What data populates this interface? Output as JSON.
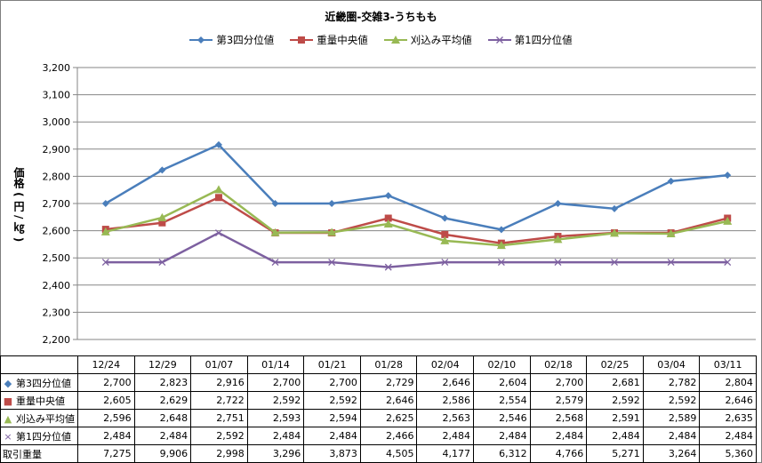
{
  "colors": {
    "q3": "#4a7ebb",
    "median": "#be4b48",
    "avg": "#98b954",
    "q1": "#7d60a0",
    "grid": "#868686"
  },
  "chart_data": {
    "type": "line",
    "title": "近畿圏-交雑3-うちもも",
    "ylabel": "価格 ( 円 / ㎏ )",
    "ylim": [
      2200,
      3200
    ],
    "yticks": [
      2200,
      2300,
      2400,
      2500,
      2600,
      2700,
      2800,
      2900,
      3000,
      3100,
      3200
    ],
    "ytick_labels": [
      "2,200",
      "2,300",
      "2,400",
      "2,500",
      "2,600",
      "2,700",
      "2,800",
      "2,900",
      "3,000",
      "3,100",
      "3,200"
    ],
    "grid": true,
    "legend": "top",
    "categories": [
      "12/24",
      "12/29",
      "01/07",
      "01/14",
      "01/21",
      "01/28",
      "02/04",
      "02/10",
      "02/18",
      "02/25",
      "03/04",
      "03/11"
    ],
    "series": [
      {
        "name": "第3四分位値",
        "key": "q3",
        "marker": "diamond",
        "values": [
          2700,
          2823,
          2916,
          2700,
          2700,
          2729,
          2646,
          2604,
          2700,
          2681,
          2782,
          2804
        ],
        "labels": [
          "2,700",
          "2,823",
          "2,916",
          "2,700",
          "2,700",
          "2,729",
          "2,646",
          "2,604",
          "2,700",
          "2,681",
          "2,782",
          "2,804"
        ]
      },
      {
        "name": "重量中央値",
        "key": "median",
        "marker": "square",
        "values": [
          2605,
          2629,
          2722,
          2592,
          2592,
          2646,
          2586,
          2554,
          2579,
          2592,
          2592,
          2646
        ],
        "labels": [
          "2,605",
          "2,629",
          "2,722",
          "2,592",
          "2,592",
          "2,646",
          "2,586",
          "2,554",
          "2,579",
          "2,592",
          "2,592",
          "2,646"
        ]
      },
      {
        "name": "刈込み平均値",
        "key": "avg",
        "marker": "triangle",
        "values": [
          2596,
          2648,
          2751,
          2593,
          2594,
          2625,
          2563,
          2546,
          2568,
          2591,
          2589,
          2635
        ],
        "labels": [
          "2,596",
          "2,648",
          "2,751",
          "2,593",
          "2,594",
          "2,625",
          "2,563",
          "2,546",
          "2,568",
          "2,591",
          "2,589",
          "2,635"
        ]
      },
      {
        "name": "第1四分位値",
        "key": "q1",
        "marker": "x",
        "values": [
          2484,
          2484,
          2592,
          2484,
          2484,
          2466,
          2484,
          2484,
          2484,
          2484,
          2484,
          2484
        ],
        "labels": [
          "2,484",
          "2,484",
          "2,592",
          "2,484",
          "2,484",
          "2,466",
          "2,484",
          "2,484",
          "2,484",
          "2,484",
          "2,484",
          "2,484"
        ]
      }
    ],
    "extra_rows": [
      {
        "name": "取引重量",
        "values": [
          7275,
          9906,
          2998,
          3296,
          3873,
          4505,
          4177,
          6312,
          4766,
          5271,
          3264,
          5360
        ],
        "labels": [
          "7,275",
          "9,906",
          "2,998",
          "3,296",
          "3,873",
          "4,505",
          "4,177",
          "6,312",
          "4,766",
          "5,271",
          "3,264",
          "5,360"
        ]
      }
    ]
  }
}
